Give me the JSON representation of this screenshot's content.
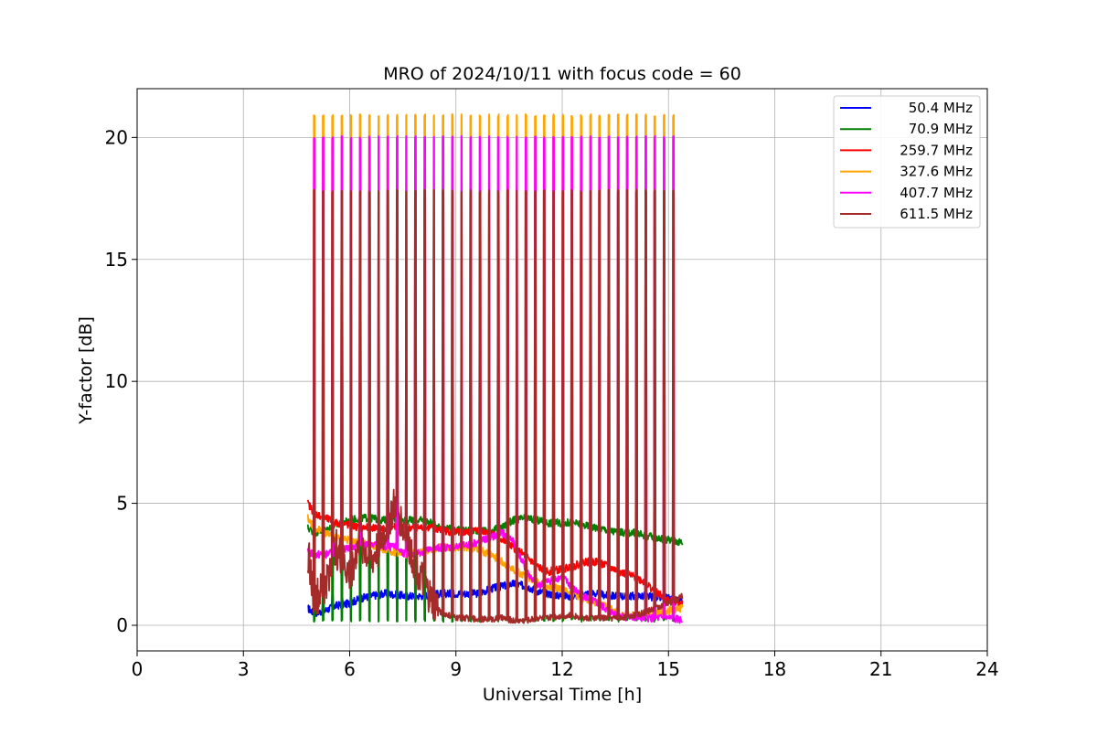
{
  "chart_data": {
    "type": "line",
    "title": "MRO of 2024/10/11 with focus code = 60",
    "xlabel": "Universal Time [h]",
    "ylabel": "Y-factor [dB]",
    "xlim": [
      0,
      24
    ],
    "ylim": [
      -1.05,
      22
    ],
    "xticks": [
      0,
      3,
      6,
      9,
      12,
      15,
      18,
      21,
      24
    ],
    "yticks": [
      0,
      5,
      10,
      15,
      20
    ],
    "grid": true,
    "legend_position": "top-right",
    "calibration_pulse_times": [
      4.98,
      5.23,
      5.5,
      5.76,
      6.02,
      6.28,
      6.54,
      6.8,
      7.06,
      7.32,
      7.58,
      7.84,
      8.1,
      8.36,
      8.62,
      8.88,
      9.14,
      9.4,
      9.66,
      9.92,
      10.18,
      10.44,
      10.7,
      10.96,
      11.22,
      11.48,
      11.74,
      12.0,
      12.26,
      12.52,
      12.78,
      13.04,
      13.3,
      13.56,
      13.82,
      14.08,
      14.34,
      14.6,
      14.86,
      15.12
    ],
    "series": [
      {
        "name": "50.4 MHz",
        "color": "#0000ff",
        "pulse_level": 1.2,
        "x": [
          4.82,
          5.0,
          5.3,
          5.6,
          6.0,
          6.3,
          6.6,
          7.0,
          7.3,
          7.6,
          8.0,
          8.3,
          8.6,
          9.0,
          9.3,
          9.6,
          10.0,
          10.3,
          10.6,
          11.0,
          11.3,
          11.6,
          12.0,
          12.3,
          12.6,
          13.0,
          13.3,
          13.6,
          14.0,
          14.3,
          14.6,
          15.0,
          15.4
        ],
        "y": [
          0.7,
          0.5,
          0.6,
          0.8,
          0.9,
          1.1,
          1.2,
          1.3,
          1.25,
          1.2,
          1.2,
          1.25,
          1.3,
          1.3,
          1.3,
          1.3,
          1.5,
          1.6,
          1.7,
          1.6,
          1.4,
          1.3,
          1.2,
          1.2,
          1.3,
          1.3,
          1.2,
          1.2,
          1.2,
          1.2,
          1.15,
          1.1,
          1.0
        ]
      },
      {
        "name": "70.9 MHz",
        "color": "#008000",
        "pulse_level": 0.2,
        "x": [
          4.82,
          5.0,
          5.3,
          5.6,
          6.0,
          6.3,
          6.6,
          7.0,
          7.3,
          7.6,
          8.0,
          8.3,
          8.6,
          9.0,
          9.3,
          9.6,
          10.0,
          10.3,
          10.6,
          11.0,
          11.3,
          11.6,
          12.0,
          12.3,
          12.6,
          13.0,
          13.3,
          13.6,
          14.0,
          14.3,
          14.6,
          15.0,
          15.4
        ],
        "y": [
          4.0,
          3.8,
          3.9,
          4.1,
          4.3,
          4.4,
          4.4,
          4.3,
          4.3,
          4.3,
          4.3,
          4.2,
          4.0,
          3.9,
          3.9,
          3.9,
          3.9,
          4.0,
          4.3,
          4.4,
          4.3,
          4.2,
          4.2,
          4.2,
          4.1,
          4.0,
          3.9,
          3.8,
          3.8,
          3.7,
          3.6,
          3.5,
          3.4
        ]
      },
      {
        "name": "259.7 MHz",
        "color": "#ff0000",
        "pulse_level": 17.8,
        "x": [
          4.82,
          5.0,
          5.3,
          5.6,
          6.0,
          6.3,
          6.6,
          7.0,
          7.3,
          7.6,
          8.0,
          8.3,
          8.6,
          9.0,
          9.3,
          9.6,
          10.0,
          10.3,
          10.6,
          11.0,
          11.3,
          11.6,
          12.0,
          12.3,
          12.6,
          13.0,
          13.3,
          13.6,
          14.0,
          14.3,
          14.6,
          15.0,
          15.4
        ],
        "y": [
          5.0,
          4.6,
          4.4,
          4.2,
          4.1,
          4.0,
          4.0,
          4.0,
          4.05,
          4.0,
          4.0,
          4.0,
          3.9,
          3.8,
          3.8,
          3.9,
          3.8,
          3.5,
          3.2,
          2.8,
          2.4,
          2.2,
          2.3,
          2.4,
          2.6,
          2.6,
          2.4,
          2.2,
          2.0,
          1.8,
          1.4,
          1.0,
          0.9
        ]
      },
      {
        "name": "327.6 MHz",
        "color": "#ffa500",
        "pulse_level": 20.9,
        "x": [
          4.82,
          5.0,
          5.3,
          5.6,
          6.0,
          6.3,
          6.6,
          7.0,
          7.3,
          7.6,
          8.0,
          8.3,
          8.6,
          9.0,
          9.3,
          9.6,
          10.0,
          10.3,
          10.6,
          11.0,
          11.3,
          11.6,
          12.0,
          12.3,
          12.6,
          13.0,
          13.3,
          13.6,
          14.0,
          14.3,
          14.6,
          15.0,
          15.4
        ],
        "y": [
          4.4,
          4.0,
          3.8,
          3.6,
          3.5,
          3.4,
          3.3,
          3.1,
          3.0,
          2.9,
          3.0,
          3.1,
          3.2,
          3.2,
          3.2,
          3.1,
          2.9,
          2.6,
          2.3,
          2.0,
          1.8,
          1.6,
          1.5,
          1.3,
          1.1,
          0.9,
          0.7,
          0.5,
          0.4,
          0.4,
          0.5,
          0.6,
          0.7
        ]
      },
      {
        "name": "407.7 MHz",
        "color": "#ff00ff",
        "pulse_level": 20.0,
        "x": [
          4.82,
          5.0,
          5.3,
          5.6,
          6.0,
          6.3,
          6.6,
          7.0,
          7.3,
          7.6,
          8.0,
          8.3,
          8.6,
          9.0,
          9.3,
          9.6,
          10.0,
          10.3,
          10.6,
          11.0,
          11.3,
          11.6,
          12.0,
          12.3,
          12.6,
          13.0,
          13.3,
          13.6,
          14.0,
          14.3,
          14.6,
          15.0,
          15.4
        ],
        "y": [
          3.0,
          2.9,
          2.9,
          3.0,
          3.2,
          3.3,
          3.3,
          3.2,
          3.2,
          2.9,
          3.0,
          3.1,
          3.2,
          3.2,
          3.3,
          3.4,
          3.6,
          3.8,
          3.5,
          2.2,
          1.6,
          1.8,
          2.0,
          1.5,
          1.2,
          0.9,
          0.6,
          0.4,
          0.3,
          0.3,
          0.3,
          0.3,
          0.2
        ]
      },
      {
        "name": "611.5 MHz",
        "color": "#a52a2a",
        "pulse_level": 17.8,
        "x": [
          4.82,
          5.0,
          5.3,
          5.6,
          6.0,
          6.3,
          6.6,
          7.0,
          7.3,
          7.6,
          8.0,
          8.3,
          8.6,
          9.0,
          9.3,
          9.6,
          10.0,
          10.3,
          10.6,
          11.0,
          11.3,
          11.6,
          12.0,
          12.3,
          12.6,
          13.0,
          13.3,
          13.6,
          14.0,
          14.3,
          14.6,
          15.0,
          15.4
        ],
        "y": [
          3.0,
          1.0,
          1.5,
          3.2,
          2.0,
          3.5,
          2.5,
          3.8,
          5.0,
          3.5,
          2.0,
          1.0,
          0.5,
          0.3,
          0.3,
          0.25,
          0.25,
          0.3,
          0.2,
          0.2,
          0.3,
          0.3,
          0.4,
          0.4,
          0.3,
          0.3,
          0.3,
          0.3,
          0.4,
          0.5,
          0.7,
          0.9,
          1.2
        ]
      }
    ]
  }
}
